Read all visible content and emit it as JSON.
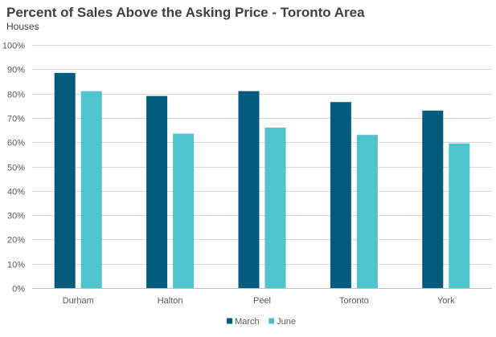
{
  "chart_data": {
    "type": "bar",
    "title": "Percent of Sales Above the Asking Price - Toronto Area",
    "subtitle": "Houses",
    "categories": [
      "Durham",
      "Halton",
      "Peel",
      "Toronto",
      "York"
    ],
    "series": [
      {
        "name": "March",
        "values": [
          88.5,
          79.0,
          81.0,
          76.5,
          73.0
        ],
        "color": "#045a7d"
      },
      {
        "name": "June",
        "values": [
          81.0,
          63.5,
          66.0,
          63.0,
          59.5
        ],
        "color": "#4ec4cc"
      }
    ],
    "ylim": [
      0,
      100
    ],
    "yticks": [
      "0%",
      "10%",
      "20%",
      "30%",
      "40%",
      "50%",
      "60%",
      "70%",
      "80%",
      "90%",
      "100%"
    ],
    "grid": true,
    "legend_position": "bottom"
  }
}
